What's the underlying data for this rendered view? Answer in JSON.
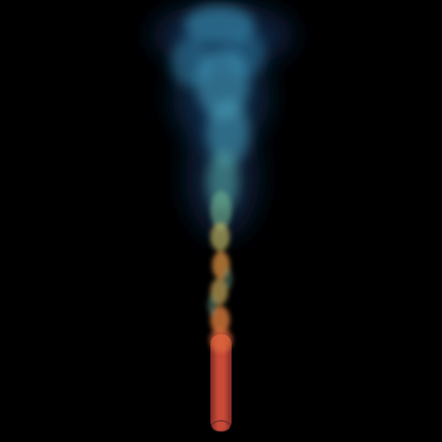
{
  "scene": {
    "subject": "plume-visualization",
    "colors": {
      "background": "#000000",
      "jet_core": "#c9473a",
      "jet_edge": "#e06a3c",
      "mid_orange": "#d98a3a",
      "mid_yellow": "#c8b45a",
      "mid_green": "#5fa89a",
      "plume_cyan": "#3f9fc4",
      "plume_blue": "#2a6fa8",
      "plume_dark": "#10335e"
    },
    "icons": []
  }
}
